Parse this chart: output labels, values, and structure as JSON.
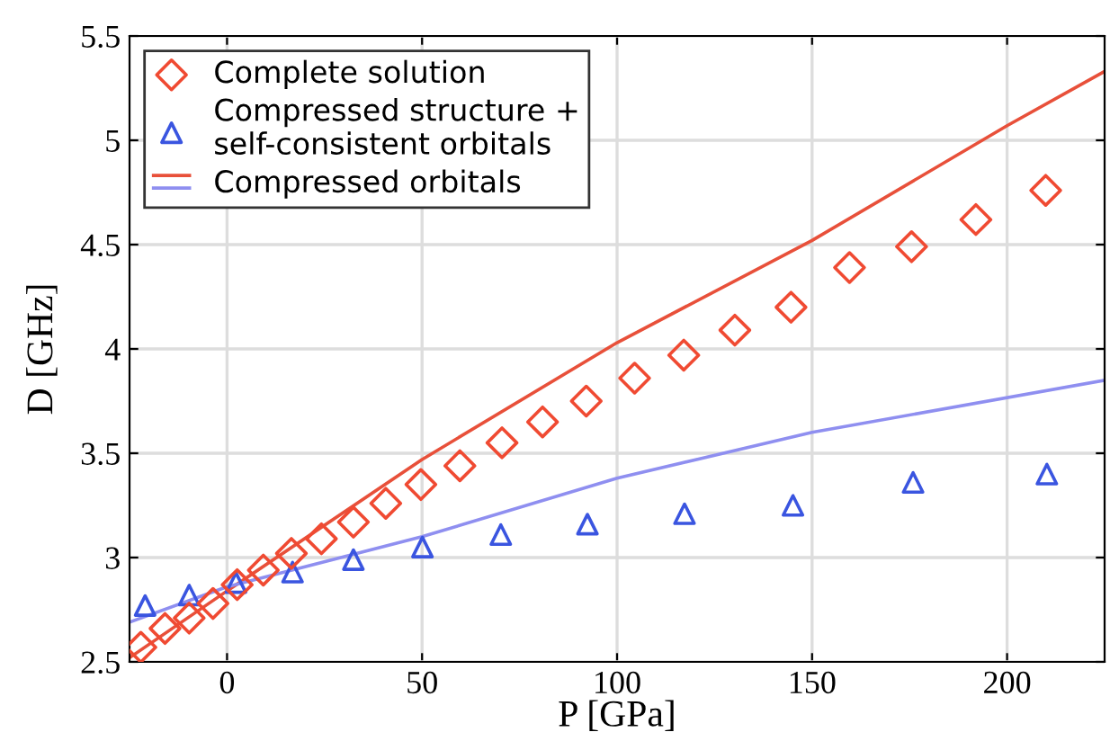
{
  "chart_data": {
    "type": "scatter",
    "xlabel": "P [GPa]",
    "ylabel": "D [GHz]",
    "xlim": [
      -25,
      225
    ],
    "ylim": [
      2.5,
      5.5
    ],
    "xticks": [
      0,
      50,
      100,
      150,
      200
    ],
    "yticks": [
      2.5,
      3,
      3.5,
      4,
      4.5,
      5,
      5.5
    ],
    "grid": true,
    "legend": "top left",
    "series": [
      {
        "name": "Complete solution",
        "marker": "diamond",
        "color": "#f04a32",
        "x": [
          -22.1,
          -15.9,
          -9.7,
          -3.6,
          2.6,
          9.3,
          16.5,
          24.2,
          32.4,
          40.7,
          49.7,
          59.7,
          70.5,
          80.9,
          92.1,
          104.5,
          117.1,
          130.2,
          144.6,
          159.6,
          175.5,
          192.0,
          209.9
        ],
        "values": [
          2.57,
          2.66,
          2.71,
          2.78,
          2.87,
          2.94,
          3.02,
          3.09,
          3.17,
          3.26,
          3.35,
          3.44,
          3.55,
          3.65,
          3.75,
          3.86,
          3.97,
          4.09,
          4.2,
          4.39,
          4.49,
          4.62,
          4.76
        ]
      },
      {
        "name": "Compressed structure +\nself-consistent orbitals",
        "marker": "triangle",
        "color": "#3a55e0",
        "x": [
          -21,
          -9.7,
          2.3,
          16.8,
          32.4,
          50.1,
          70.2,
          92.4,
          117.3,
          145.1,
          175.9,
          210.2
        ],
        "values": [
          2.77,
          2.82,
          2.88,
          2.93,
          2.99,
          3.05,
          3.11,
          3.16,
          3.21,
          3.25,
          3.36,
          3.4
        ]
      },
      {
        "name": "Compressed orbitals",
        "type": "line",
        "color": "#e8503a",
        "x": [
          -25,
          0,
          50,
          100,
          150,
          200,
          225
        ],
        "values": [
          2.52,
          2.84,
          3.47,
          4.03,
          4.52,
          5.07,
          5.33
        ]
      },
      {
        "type": "line",
        "color": "#8f8ff0",
        "x": [
          -25,
          0,
          50,
          100,
          150,
          225
        ],
        "values": [
          2.69,
          2.86,
          3.1,
          3.38,
          3.6,
          3.85
        ]
      }
    ]
  }
}
